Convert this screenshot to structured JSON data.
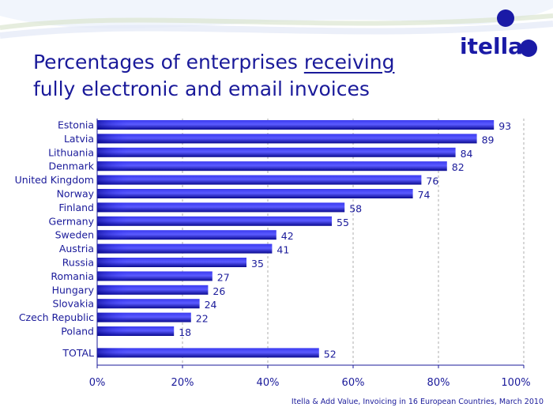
{
  "title": {
    "part1": "Percentages of enterprises ",
    "underlined": "receiving",
    "line2": "fully electronic and email invoices"
  },
  "logo": {
    "text": "itella"
  },
  "source": "Itella & Add Value, Invoicing in 16 European Countries, March 2010",
  "colors": {
    "bar_dark": "#0a0a8f",
    "bar_light": "#4d4dff",
    "text": "#1a1a9a",
    "axis": "#1a1a9a",
    "grid": "#9a9a9a"
  },
  "chart_data": {
    "type": "bar",
    "orientation": "horizontal",
    "categories": [
      "Estonia",
      "Latvia",
      "Lithuania",
      "Denmark",
      "United Kingdom",
      "Norway",
      "Finland",
      "Germany",
      "Sweden",
      "Austria",
      "Russia",
      "Romania",
      "Hungary",
      "Slovakia",
      "Czech Republic",
      "Poland",
      "TOTAL"
    ],
    "values": [
      93,
      89,
      84,
      82,
      76,
      74,
      58,
      55,
      42,
      41,
      35,
      27,
      26,
      24,
      22,
      18,
      52
    ],
    "xlim": [
      0,
      100
    ],
    "xticks": [
      "0%",
      "20%",
      "40%",
      "60%",
      "80%",
      "100%"
    ],
    "grid": "vertical dashed",
    "legend": "none"
  }
}
